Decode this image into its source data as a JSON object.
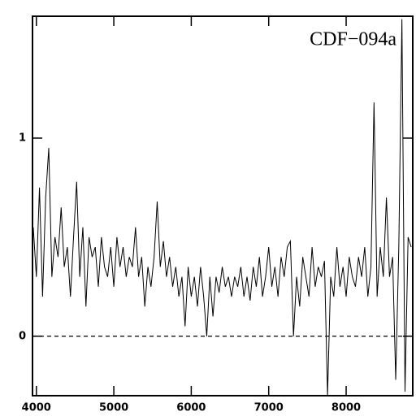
{
  "chart_data": {
    "type": "line",
    "title": "CDF−094a",
    "x": [
      3960,
      4000,
      4040,
      4080,
      4120,
      4160,
      4200,
      4240,
      4280,
      4320,
      4360,
      4400,
      4440,
      4480,
      4520,
      4560,
      4600,
      4640,
      4680,
      4720,
      4760,
      4800,
      4840,
      4880,
      4920,
      4960,
      5000,
      5040,
      5080,
      5120,
      5160,
      5200,
      5240,
      5280,
      5320,
      5360,
      5400,
      5440,
      5480,
      5520,
      5560,
      5600,
      5640,
      5680,
      5720,
      5760,
      5800,
      5840,
      5880,
      5920,
      5960,
      6000,
      6040,
      6080,
      6120,
      6160,
      6200,
      6240,
      6280,
      6320,
      6360,
      6400,
      6440,
      6480,
      6520,
      6560,
      6600,
      6640,
      6680,
      6720,
      6760,
      6800,
      6840,
      6880,
      6920,
      6960,
      7000,
      7040,
      7080,
      7120,
      7160,
      7200,
      7240,
      7280,
      7320,
      7360,
      7400,
      7440,
      7480,
      7520,
      7560,
      7600,
      7640,
      7680,
      7720,
      7760,
      7800,
      7840,
      7880,
      7920,
      7960,
      8000,
      8040,
      8080,
      8120,
      8160,
      8200,
      8240,
      8280,
      8320,
      8360,
      8400,
      8440,
      8480,
      8520,
      8560,
      8600,
      8640,
      8680,
      8720,
      8760,
      8800,
      8840
    ],
    "series": [
      {
        "color": "#000000",
        "values": [
          0.55,
          0.3,
          0.75,
          0.2,
          0.7,
          0.95,
          0.3,
          0.5,
          0.4,
          0.65,
          0.35,
          0.45,
          0.2,
          0.5,
          0.78,
          0.3,
          0.55,
          0.15,
          0.5,
          0.4,
          0.45,
          0.25,
          0.5,
          0.35,
          0.3,
          0.45,
          0.25,
          0.5,
          0.35,
          0.45,
          0.3,
          0.4,
          0.35,
          0.55,
          0.3,
          0.4,
          0.15,
          0.35,
          0.25,
          0.4,
          0.68,
          0.35,
          0.48,
          0.3,
          0.4,
          0.25,
          0.35,
          0.2,
          0.3,
          0.05,
          0.35,
          0.2,
          0.3,
          0.15,
          0.35,
          0.2,
          0.0,
          0.3,
          0.1,
          0.3,
          0.22,
          0.35,
          0.25,
          0.3,
          0.2,
          0.3,
          0.25,
          0.35,
          0.2,
          0.3,
          0.18,
          0.35,
          0.25,
          0.4,
          0.2,
          0.3,
          0.45,
          0.25,
          0.35,
          0.2,
          0.4,
          0.3,
          0.45,
          0.48,
          0.0,
          0.3,
          0.15,
          0.4,
          0.3,
          0.2,
          0.45,
          0.25,
          0.35,
          0.3,
          0.38,
          -0.3,
          0.3,
          0.2,
          0.45,
          0.25,
          0.35,
          0.2,
          0.4,
          0.3,
          0.25,
          0.4,
          0.3,
          0.45,
          0.2,
          0.35,
          1.18,
          0.2,
          0.45,
          0.3,
          0.7,
          0.3,
          0.4,
          -0.22,
          0.45,
          1.6,
          -0.28,
          0.5,
          0.45
        ]
      }
    ],
    "xlim": [
      3950,
      8860
    ],
    "xticks": [
      4000,
      5000,
      6000,
      7000,
      8000
    ],
    "ylim": [
      -0.3,
      1.615
    ],
    "yticks": [
      0,
      1
    ],
    "reference_line": 0
  }
}
